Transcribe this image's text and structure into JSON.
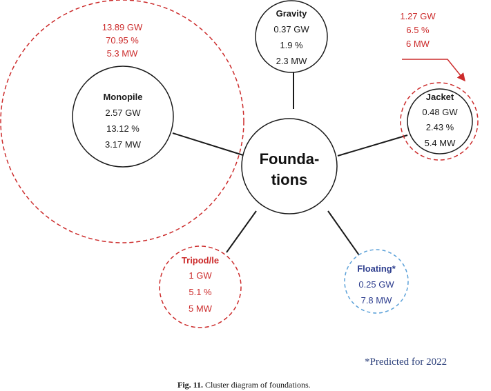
{
  "center": {
    "line1": "Founda-",
    "line2": "tions"
  },
  "monopile": {
    "title": "Monopile",
    "current": [
      "2.57 GW",
      "13.12 %",
      "3.17 MW"
    ],
    "projected": [
      "13.89 GW",
      "70.95 %",
      "5.3 MW"
    ]
  },
  "gravity": {
    "title": "Gravity",
    "current": [
      "0.37 GW",
      "1.9 %",
      "2.3 MW"
    ]
  },
  "jacket": {
    "title": "Jacket",
    "current": [
      "0.48 GW",
      "2.43 %",
      "5.4 MW"
    ],
    "projected": [
      "1.27 GW",
      "6.5 %",
      "6 MW"
    ]
  },
  "tripod": {
    "title": "Tripod/le",
    "values": [
      "1 GW",
      "5.1 %",
      "5 MW"
    ]
  },
  "floating": {
    "title": "Floating*",
    "values": [
      "0.25 GW",
      "7.8 MW"
    ]
  },
  "footnote": "*Predicted for 2022",
  "caption": {
    "label": "Fig. 11.",
    "text": " Cluster diagram of foundations."
  },
  "colors": {
    "projected": "#cc2b2b",
    "floating": "#2f3f8f",
    "floating_outline": "#5aa0d8",
    "line": "#1a1a1a"
  }
}
